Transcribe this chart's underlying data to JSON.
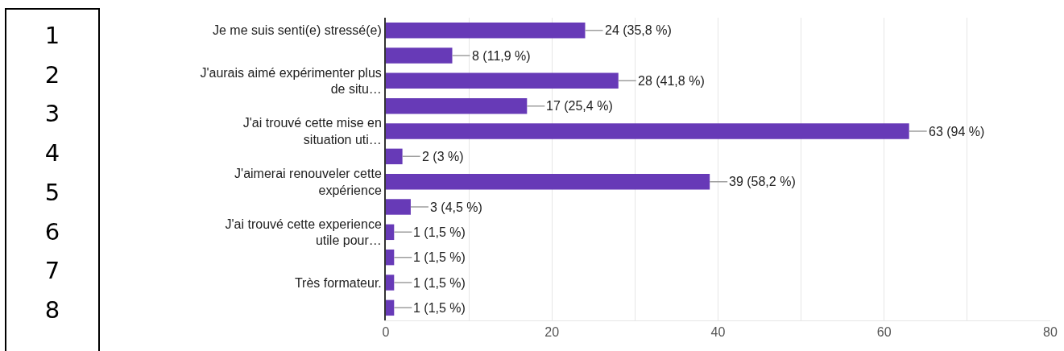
{
  "chart_data": {
    "type": "bar",
    "orientation": "horizontal",
    "color": "#673ab7",
    "categories": [
      "Je me suis senti(e) stressé(e)",
      null,
      "J'aurais aimé expérimenter plus de situ…",
      null,
      "J'ai trouvé cette mise en situation uti…",
      null,
      "J'aimerai renouveler cette expérience",
      null,
      "J'ai trouvé cette experience utile pour…",
      null,
      "Très formateur.",
      null
    ],
    "values": [
      24,
      8,
      28,
      17,
      63,
      2,
      39,
      3,
      1,
      1,
      1,
      1
    ],
    "value_labels": [
      "24 (35,8 %)",
      "8 (11,9 %)",
      "28 (41,8 %)",
      "17 (25,4 %)",
      "63 (94 %)",
      "2 (3 %)",
      "39 (58,2 %)",
      "3 (4,5 %)",
      "1 (1,5 %)",
      "1 (1,5 %)",
      "1 (1,5 %)",
      "1 (1,5 %)"
    ],
    "xlim": [
      0,
      80
    ],
    "xticks": [
      0,
      {
        "value": 10,
        "label": null
      },
      20,
      {
        "value": 30,
        "label": null
      },
      40,
      {
        "value": 50,
        "label": null
      },
      60,
      {
        "value": 70,
        "label": null
      },
      80
    ],
    "grid": "x",
    "annotations": [
      "1",
      "2",
      "3",
      "4",
      "5",
      "6",
      "7",
      "8"
    ]
  }
}
